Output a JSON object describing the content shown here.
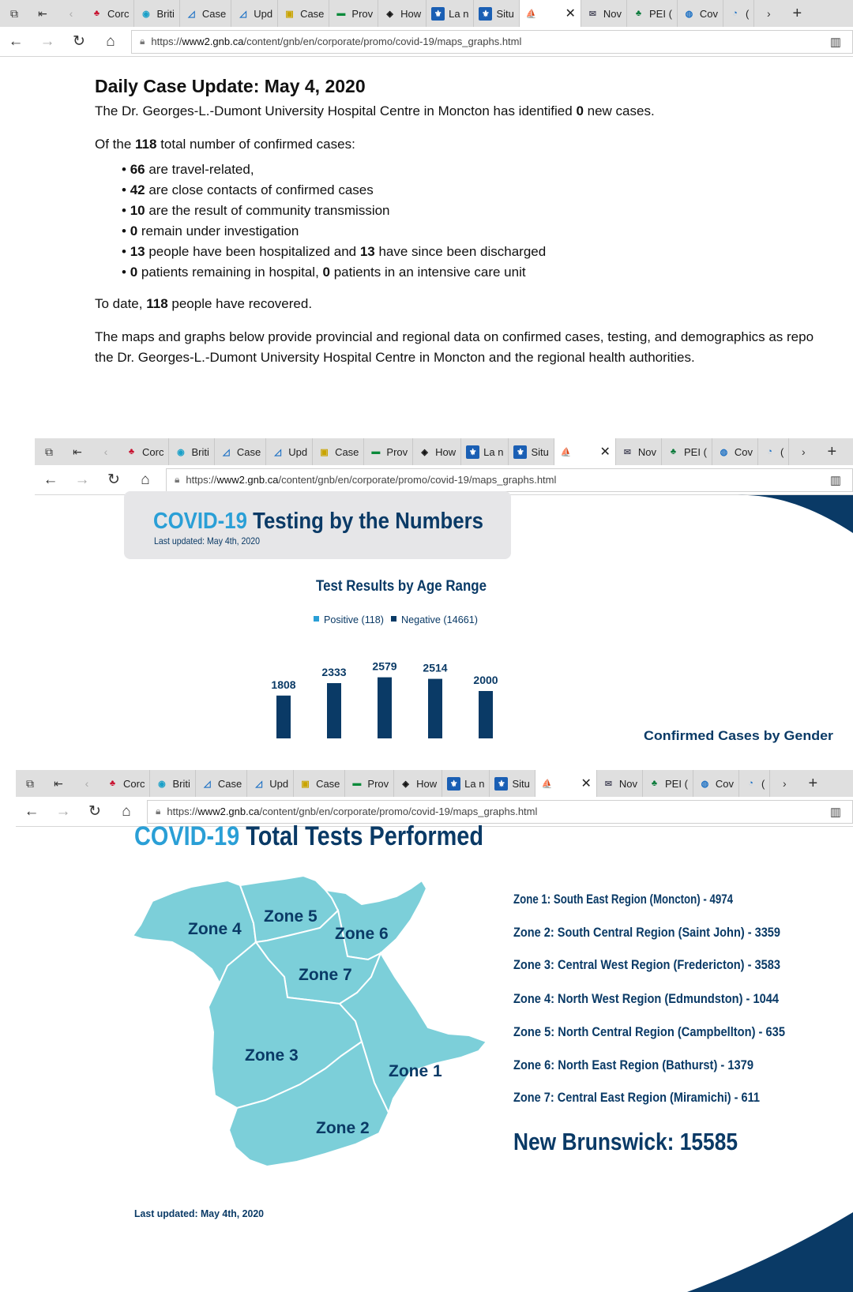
{
  "browser": {
    "tabs": [
      "Corc",
      "Briti",
      "Case",
      "Upd",
      "Case",
      "Prov",
      "How",
      "La n",
      "Situ",
      "",
      "Nov",
      "PEI (",
      "Cov",
      "("
    ],
    "url_prefix": "https://",
    "url_domain": "www2.gnb.ca",
    "url_path": "/content/gnb/en/corporate/promo/covid-19/maps_graphs.html"
  },
  "update": {
    "title": "Daily Case Update: May 4, 2020",
    "line1_pre": "The Dr. Georges-L.-Dumont University Hospital Centre in Moncton has identified ",
    "line1_num": "0",
    "line1_post": " new cases.",
    "line2_pre": "Of the ",
    "line2_num": "118",
    "line2_post": " total number of confirmed cases:",
    "bullets": [
      {
        "n1": "66",
        "t1": " are travel-related,",
        "n2": "",
        "t2": ""
      },
      {
        "n1": "42",
        "t1": " are close contacts of confirmed cases",
        "n2": "",
        "t2": ""
      },
      {
        "n1": "10",
        "t1": " are the result of community transmission",
        "n2": "",
        "t2": ""
      },
      {
        "n1": "0",
        "t1": " remain under investigation",
        "n2": "",
        "t2": ""
      },
      {
        "n1": "13",
        "t1": " people have been hospitalized and ",
        "n2": "13",
        "t2": " have since been discharged"
      },
      {
        "n1": "0",
        "t1": " patients remaining in hospital, ",
        "n2": "0",
        "t2": " patients in an intensive care unit"
      }
    ],
    "recovered_pre": "To date, ",
    "recovered_num": "118",
    "recovered_post": " people have recovered.",
    "maps_text1": "The maps and graphs below provide provincial and regional data on confirmed cases, testing, and demographics as repo",
    "maps_text2": "the Dr. Georges-L.-Dumont University Hospital Centre in Moncton and the regional health authorities."
  },
  "testing": {
    "covid": "COVID-19",
    "title": " Testing by the Numbers",
    "updated": "Last updated: May 4th, 2020",
    "chart_title": "Test Results by Age Range",
    "legend_pos": "Positive (118)",
    "legend_neg": "Negative (14661)",
    "next_title": "Confirmed Cases by Gender",
    "colors": {
      "positive": "#2a9fd6",
      "negative": "#0a3a66"
    }
  },
  "chart_data": {
    "type": "bar",
    "title": "Test Results by Age Range",
    "series": [
      {
        "name": "Positive (118)",
        "values": [
          null,
          null,
          null,
          null,
          null
        ]
      },
      {
        "name": "Negative (14661)",
        "values": [
          1808,
          2333,
          2579,
          2514,
          2000
        ]
      }
    ],
    "categories": [
      "",
      "",
      "",
      "",
      ""
    ],
    "legend": "top"
  },
  "total_tests": {
    "covid": "COVID-19",
    "title": " Total Tests Performed",
    "zones": [
      {
        "label": "Zone 1",
        "text": "Zone 1: South East Region (Moncton) - 4974"
      },
      {
        "label": "Zone 2",
        "text": "Zone 2: South Central Region (Saint John) - 3359"
      },
      {
        "label": "Zone 3",
        "text": "Zone 3: Central West Region (Fredericton) - 3583"
      },
      {
        "label": "Zone 4",
        "text": "Zone 4: North West Region (Edmundston) - 1044"
      },
      {
        "label": "Zone 5",
        "text": "Zone 5: North Central Region (Campbellton) - 635"
      },
      {
        "label": "Zone 6",
        "text": "Zone 6: North East Region (Bathurst) - 1379"
      },
      {
        "label": "Zone 7",
        "text": "Zone 7: Central East Region (Miramichi) - 611"
      }
    ],
    "total": "New Brunswick: 15585",
    "updated": "Last updated: May 4th, 2020",
    "logo_small": "New",
    "logo": "Bru",
    "map_color": "#7ccfd9"
  }
}
